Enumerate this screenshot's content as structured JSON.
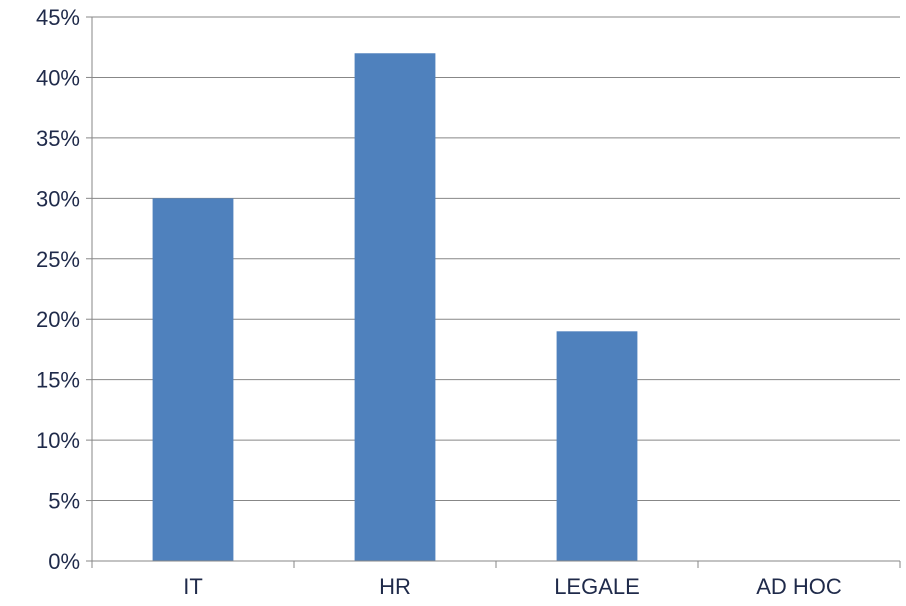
{
  "chart_data": {
    "type": "bar",
    "categories": [
      "IT",
      "HR",
      "LEGALE",
      "AD HOC"
    ],
    "values": [
      30,
      42,
      19,
      0
    ],
    "title": "",
    "xlabel": "",
    "ylabel": "",
    "ylim": [
      0,
      45
    ],
    "y_ticks": [
      0,
      5,
      10,
      15,
      20,
      25,
      30,
      35,
      40,
      45
    ],
    "y_tick_labels": [
      "0%",
      "5%",
      "10%",
      "15%",
      "20%",
      "25%",
      "30%",
      "35%",
      "40%",
      "45%"
    ],
    "grid": true,
    "legend": "none",
    "colors": {
      "bar": "#4f81bd",
      "grid": "#878787",
      "axis": "#878787",
      "text": "#1f2a4a"
    }
  }
}
